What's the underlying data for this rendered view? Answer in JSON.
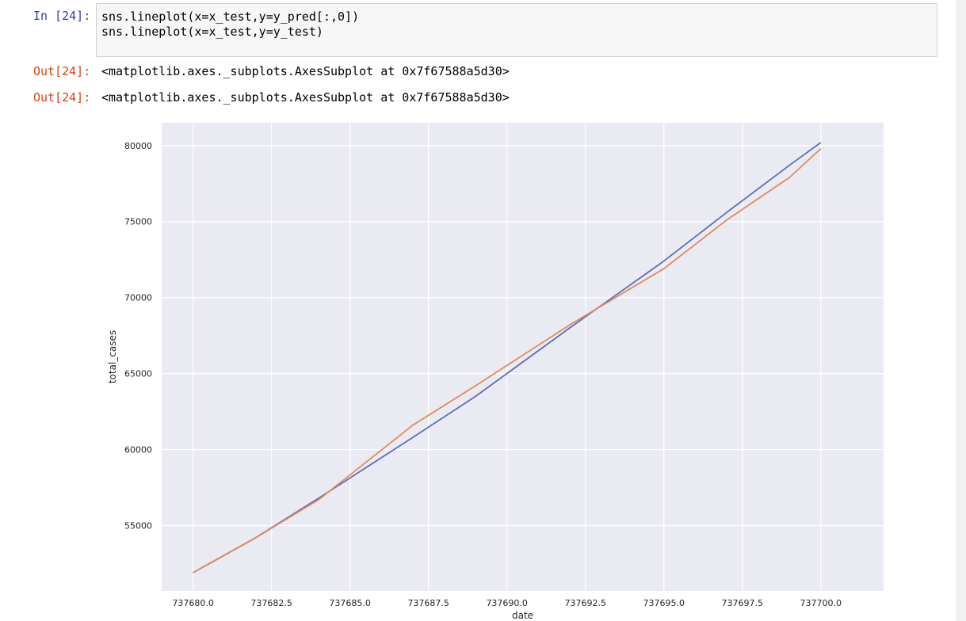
{
  "cell": {
    "prompt_in": "In [24]:",
    "code_lines": [
      "sns.lineplot(x=x_test,y=y_pred[:,0])",
      "sns.lineplot(x=x_test,y=y_test)"
    ],
    "outputs": [
      {
        "prompt": "Out[24]:",
        "text": "<matplotlib.axes._subplots.AxesSubplot at 0x7f67588a5d30>"
      },
      {
        "prompt": "Out[24]:",
        "text": "<matplotlib.axes._subplots.AxesSubplot at 0x7f67588a5d30>"
      }
    ]
  },
  "colors": {
    "series_pred": "#5a6fb4",
    "series_test": "#e08a5e",
    "plot_bg": "#eaeaf2",
    "grid": "#ffffff"
  },
  "chart_data": {
    "type": "line",
    "title": "",
    "xlabel": "date",
    "ylabel": "total_cases",
    "xlim": [
      737679.0,
      737702.0
    ],
    "ylim": [
      50700,
      81500
    ],
    "xticks": [
      737680.0,
      737682.5,
      737685.0,
      737687.5,
      737690.0,
      737692.5,
      737695.0,
      737697.5,
      737700.0
    ],
    "xtick_labels": [
      "737680.0",
      "737682.5",
      "737685.0",
      "737687.5",
      "737690.0",
      "737692.5",
      "737695.0",
      "737697.5",
      "737700.0"
    ],
    "yticks": [
      55000,
      60000,
      65000,
      70000,
      75000,
      80000
    ],
    "ytick_labels": [
      "55000",
      "60000",
      "65000",
      "70000",
      "75000",
      "80000"
    ],
    "grid": true,
    "series": [
      {
        "x": [
          737680,
          737682,
          737684,
          737687,
          737689,
          737692,
          737695,
          737697,
          737699,
          737700
        ],
        "y": [
          51900,
          54200,
          56800,
          60800,
          63500,
          68000,
          72400,
          75600,
          78700,
          80200
        ]
      },
      {
        "x": [
          737680,
          737682,
          737684,
          737687,
          737689,
          737692,
          737695,
          737697,
          737699,
          737700
        ],
        "y": [
          51900,
          54200,
          56700,
          61600,
          64200,
          68200,
          71900,
          75100,
          77900,
          79800
        ]
      }
    ]
  }
}
